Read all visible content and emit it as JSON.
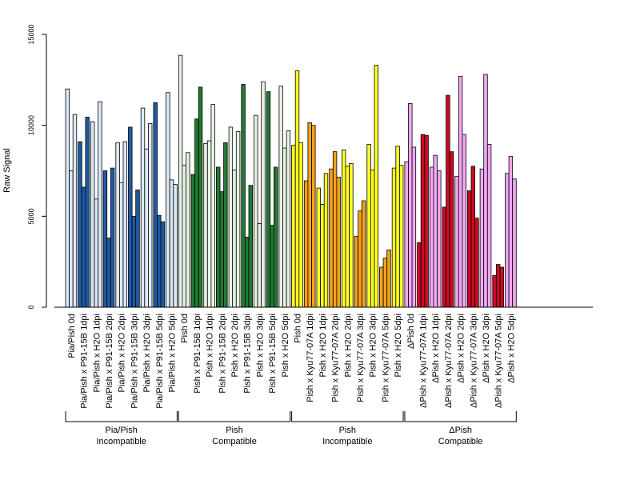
{
  "chart_data": {
    "type": "bar",
    "title": "",
    "xlabel": "",
    "ylabel": "Raw Signal",
    "ylim": [
      0,
      15000
    ],
    "yticks": [
      0,
      5000,
      10000,
      15000
    ],
    "grid": false,
    "legend": "none",
    "colors": {
      "light_blue": "#dce8f6",
      "dark_blue": "#1f5ba5",
      "light_green": "#e6f3e3",
      "dark_green": "#227a34",
      "yellow": "#ffff22",
      "orange": "#f5a21b",
      "pink": "#f2a8f2",
      "red": "#cc0a24"
    },
    "categories": [
      "Pia/Pish 0d",
      "Pia/Pish x P91-15B 1dpi",
      "Pia/Pish x H2O 1dpi",
      "Pia/Pish x P91-15B 2dpi",
      "Pia/Pish x H2O 2dpi",
      "Pia/Pish x P91-15B 3dpi",
      "Pia/Pish x H2O 3dpi",
      "Pia/Pish x P91-15B 5dpi",
      "Pia/Pish x H2O 5dpi",
      "Pish 0d",
      "Pish x P91-15B 1dpi",
      "Pish x H2O 1dpi",
      "Pish x P91-15B 2dpi",
      "Pish x H2O 2dpi",
      "Pish x P91-15B 3dpi",
      "Pish x H2O 3dpi",
      "Pish x P91-15B 5dpi",
      "Pish x H2O 5dpi",
      "Pish 0d",
      "Pish x Kyu77-07A 1dpi",
      "Pish x H2O 1dpi",
      "Pish x Kyu77-07A 2dpi",
      "Pish x H2O 2dpi",
      "Pish x Kyu77-07A 3dpi",
      "Pish x H2O 3dpi",
      "Pish x Kyu77-07A 5dpi",
      "Pish x H2O 5dpi",
      "ΔPish 0d",
      "ΔPish x Kyu77-07A 1dpi",
      "ΔPish x H2O 1dpi",
      "ΔPish x Kyu77-07A 2dpi",
      "ΔPish x H2O 2dpi",
      "ΔPish x Kyu77-07A 3dpi",
      "ΔPish x H2O 3dpi",
      "ΔPish x Kyu77-07A 5dpi",
      "ΔPish x H2O 5dpi"
    ],
    "bar_colors": [
      "light_blue",
      "dark_blue",
      "light_blue",
      "dark_blue",
      "light_blue",
      "dark_blue",
      "light_blue",
      "dark_blue",
      "light_blue",
      "light_green",
      "dark_green",
      "light_green",
      "dark_green",
      "light_green",
      "dark_green",
      "light_green",
      "dark_green",
      "light_green",
      "yellow",
      "orange",
      "yellow",
      "orange",
      "yellow",
      "orange",
      "yellow",
      "orange",
      "yellow",
      "pink",
      "red",
      "pink",
      "red",
      "pink",
      "red",
      "pink",
      "red",
      "pink"
    ],
    "values": [
      [
        12000,
        7500,
        10600
      ],
      [
        9100,
        6600,
        10450
      ],
      [
        10200,
        5950,
        11300
      ],
      [
        7500,
        3800,
        7650
      ],
      [
        9050,
        6850,
        9100
      ],
      [
        9900,
        5000,
        6450
      ],
      [
        10950,
        8700,
        10100
      ],
      [
        11250,
        5050,
        4700
      ],
      [
        11800,
        7000,
        6750
      ],
      [
        13850,
        7800,
        8500
      ],
      [
        7300,
        10350,
        12100
      ],
      [
        9000,
        9150,
        11150
      ],
      [
        7700,
        6350,
        9050
      ],
      [
        9900,
        7550,
        9650
      ],
      [
        12250,
        3850,
        6700
      ],
      [
        10550,
        4600,
        12400
      ],
      [
        11850,
        4500,
        7700
      ],
      [
        12150,
        8750,
        9700
      ],
      [
        8900,
        13000,
        9050
      ],
      [
        6950,
        10150,
        10000
      ],
      [
        6550,
        5650,
        7350
      ],
      [
        7600,
        8550,
        7150
      ],
      [
        8650,
        7750,
        7900
      ],
      [
        3900,
        5300,
        5850
      ],
      [
        8950,
        7550,
        13300
      ],
      [
        2200,
        2700,
        3150
      ],
      [
        7650,
        8850,
        7800
      ],
      [
        8000,
        11200,
        8800
      ],
      [
        3550,
        9500,
        9450
      ],
      [
        7700,
        8350,
        7500
      ],
      [
        5500,
        11650,
        8550
      ],
      [
        7200,
        12700,
        9500
      ],
      [
        6400,
        7750,
        4900
      ],
      [
        7600,
        12800,
        8950
      ],
      [
        1750,
        2350,
        2200
      ],
      [
        7350,
        8300,
        7050
      ]
    ],
    "groups": [
      {
        "line1": "Pia/Pish",
        "line2": "Incompatible",
        "start": 0,
        "end": 8
      },
      {
        "line1": "Pish",
        "line2": "Compatible",
        "start": 9,
        "end": 17
      },
      {
        "line1": "Pish",
        "line2": "Incompatible",
        "start": 18,
        "end": 26
      },
      {
        "line1": "ΔPish",
        "line2": "Compatible",
        "start": 27,
        "end": 35
      }
    ]
  }
}
